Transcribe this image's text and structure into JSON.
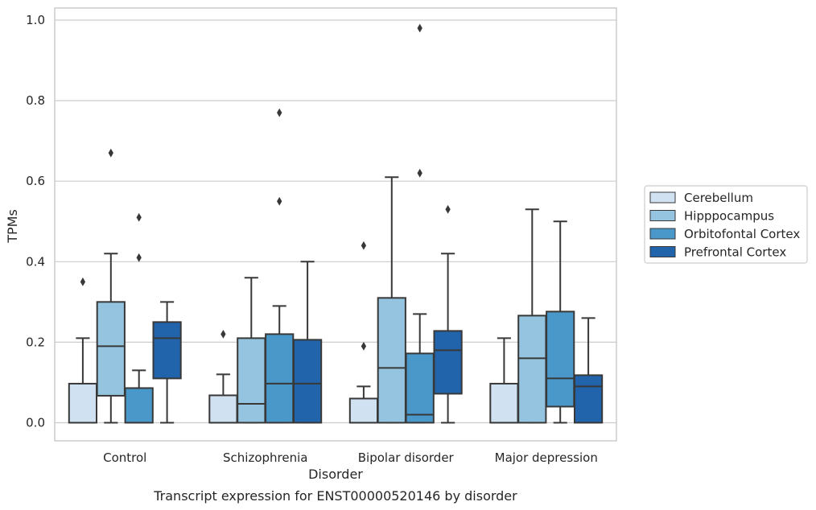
{
  "chart_data": {
    "type": "box",
    "caption": "Transcript expression for ENST00000520146 by disorder",
    "xlabel": "Disorder",
    "ylabel": "TPMs",
    "ylim": [
      -0.045,
      1.03
    ],
    "yticks": [
      0.0,
      0.2,
      0.4,
      0.6,
      0.8,
      1.0
    ],
    "ytick_labels": [
      "0.0",
      "0.2",
      "0.4",
      "0.6",
      "0.8",
      "1.0"
    ],
    "grid": true,
    "legend_position": "right",
    "categories": [
      "Control",
      "Schizophrenia",
      "Bipolar disorder",
      "Major depression"
    ],
    "series": [
      {
        "name": "Cerebellum",
        "color": "#d0e1f2",
        "boxes": [
          {
            "whislo": 0.0,
            "q1": 0.0,
            "med": 0.0,
            "q3": 0.097,
            "whishi": 0.21,
            "fliers": [
              0.35
            ]
          },
          {
            "whislo": 0.0,
            "q1": 0.0,
            "med": 0.0,
            "q3": 0.068,
            "whishi": 0.12,
            "fliers": [
              0.22
            ]
          },
          {
            "whislo": 0.0,
            "q1": 0.0,
            "med": 0.0,
            "q3": 0.06,
            "whishi": 0.09,
            "fliers": [
              0.19,
              0.44
            ]
          },
          {
            "whislo": 0.0,
            "q1": 0.0,
            "med": 0.0,
            "q3": 0.097,
            "whishi": 0.21,
            "fliers": []
          }
        ]
      },
      {
        "name": "Hipppocampus",
        "color": "#94c4df",
        "boxes": [
          {
            "whislo": 0.0,
            "q1": 0.067,
            "med": 0.19,
            "q3": 0.3,
            "whishi": 0.42,
            "fliers": [
              0.67
            ]
          },
          {
            "whislo": 0.0,
            "q1": 0.0,
            "med": 0.047,
            "q3": 0.21,
            "whishi": 0.36,
            "fliers": []
          },
          {
            "whislo": 0.0,
            "q1": 0.0,
            "med": 0.136,
            "q3": 0.31,
            "whishi": 0.61,
            "fliers": []
          },
          {
            "whislo": 0.0,
            "q1": 0.0,
            "med": 0.16,
            "q3": 0.266,
            "whishi": 0.53,
            "fliers": []
          }
        ]
      },
      {
        "name": "Orbitofontal Cortex",
        "color": "#4a98c9",
        "boxes": [
          {
            "whislo": 0.0,
            "q1": 0.0,
            "med": 0.0,
            "q3": 0.086,
            "whishi": 0.13,
            "fliers": [
              0.41,
              0.51
            ]
          },
          {
            "whislo": 0.0,
            "q1": 0.0,
            "med": 0.097,
            "q3": 0.22,
            "whishi": 0.29,
            "fliers": [
              0.55,
              0.77
            ]
          },
          {
            "whislo": 0.0,
            "q1": 0.0,
            "med": 0.02,
            "q3": 0.172,
            "whishi": 0.27,
            "fliers": [
              0.62,
              0.98
            ]
          },
          {
            "whislo": 0.0,
            "q1": 0.04,
            "med": 0.11,
            "q3": 0.276,
            "whishi": 0.5,
            "fliers": []
          }
        ]
      },
      {
        "name": "Prefrontal Cortex",
        "color": "#2164ab",
        "boxes": [
          {
            "whislo": 0.0,
            "q1": 0.11,
            "med": 0.21,
            "q3": 0.25,
            "whishi": 0.3,
            "fliers": []
          },
          {
            "whislo": 0.0,
            "q1": 0.0,
            "med": 0.097,
            "q3": 0.206,
            "whishi": 0.4,
            "fliers": []
          },
          {
            "whislo": 0.0,
            "q1": 0.072,
            "med": 0.18,
            "q3": 0.228,
            "whishi": 0.42,
            "fliers": [
              0.53
            ]
          },
          {
            "whislo": 0.0,
            "q1": 0.0,
            "med": 0.09,
            "q3": 0.118,
            "whishi": 0.26,
            "fliers": []
          }
        ]
      }
    ]
  }
}
